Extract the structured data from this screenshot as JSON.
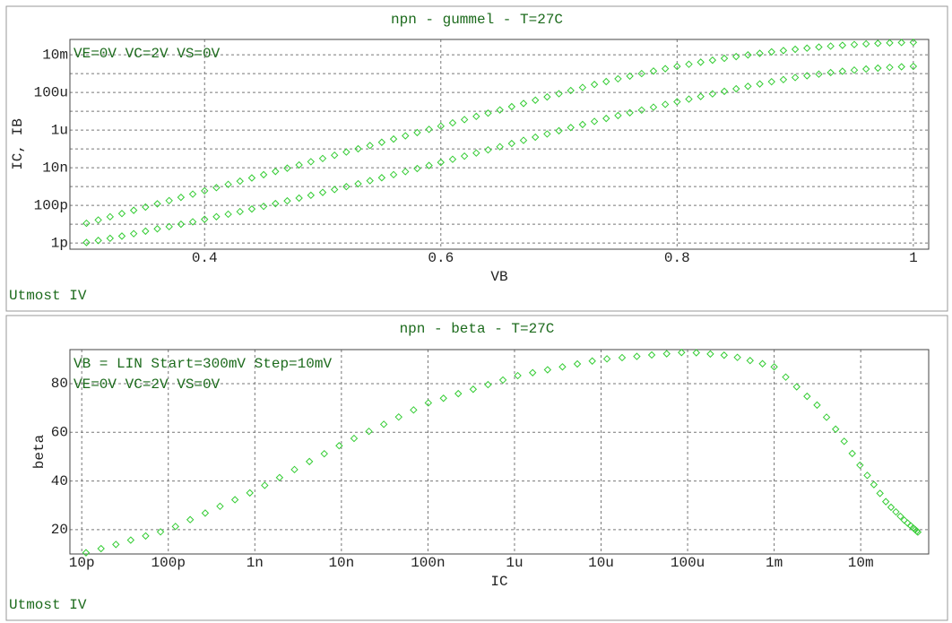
{
  "chart_data": [
    {
      "type": "scatter",
      "title": "npn - gummel - T=27C",
      "xlabel": "VB",
      "ylabel": "IC, IB",
      "footer": "Utmost IV",
      "annotations": [
        "VE=0V VC=2V VS=0V"
      ],
      "x": [
        0.3,
        0.31,
        0.32,
        0.33,
        0.34,
        0.35,
        0.36,
        0.37,
        0.38,
        0.39,
        0.4,
        0.41,
        0.42,
        0.43,
        0.44,
        0.45,
        0.46,
        0.47,
        0.48,
        0.49,
        0.5,
        0.51,
        0.52,
        0.53,
        0.54,
        0.55,
        0.56,
        0.57,
        0.58,
        0.59,
        0.6,
        0.61,
        0.62,
        0.63,
        0.64,
        0.65,
        0.66,
        0.67,
        0.68,
        0.69,
        0.7,
        0.71,
        0.72,
        0.73,
        0.74,
        0.75,
        0.76,
        0.77,
        0.78,
        0.79,
        0.8,
        0.81,
        0.82,
        0.83,
        0.84,
        0.85,
        0.86,
        0.87,
        0.88,
        0.89,
        0.9,
        0.91,
        0.92,
        0.93,
        0.94,
        0.95,
        0.96,
        0.97,
        0.98,
        0.99,
        1
      ],
      "series": [
        {
          "color": "#33cc33",
          "values": [
            1.12e-11,
            1.67e-11,
            2.48e-11,
            3.68e-11,
            5.47e-11,
            8.13e-11,
            1.21e-10,
            1.79e-10,
            2.67e-10,
            3.96e-10,
            5.89e-10,
            8.75e-10,
            1.3e-09,
            1.93e-09,
            2.87e-09,
            4.27e-09,
            6.34e-09,
            9.42e-09,
            1.4e-08,
            2.08e-08,
            3.09e-08,
            4.59e-08,
            6.82e-08,
            1.01e-07,
            1.51e-07,
            2.24e-07,
            3.33e-07,
            4.94e-07,
            7.35e-07,
            1.09e-06,
            1.62e-06,
            2.41e-06,
            3.58e-06,
            5.32e-06,
            7.91e-06,
            1.17e-05,
            1.75e-05,
            2.59e-05,
            3.85e-05,
            5.73e-05,
            8.51e-05,
            0.000126,
            0.000183,
            0.000264,
            0.000376,
            0.000527,
            0.000733,
            0.001,
            0.00136,
            0.00182,
            0.0024,
            0.00313,
            0.00403,
            0.00513,
            0.00644,
            0.00798,
            0.0098,
            0.0119,
            0.0142,
            0.0167,
            0.0195,
            0.0224,
            0.0255,
            0.0287,
            0.0318,
            0.0348,
            0.0378,
            0.0404,
            0.0426,
            0.0444,
            0.0457
          ]
        },
        {
          "color": "#33cc33",
          "values": [
            1.07e-12,
            1.37e-12,
            1.78e-12,
            2.34e-12,
            3.14e-12,
            4.26e-12,
            5.68e-12,
            7.43e-12,
            9.96e-12,
            1.34e-11,
            1.82e-11,
            2.49e-11,
            3.4e-11,
            4.66e-11,
            6.42e-11,
            8.9e-11,
            1.24e-10,
            1.73e-10,
            2.43e-10,
            3.44e-10,
            4.88e-10,
            6.92e-10,
            9.86e-10,
            1.4e-09,
            2.04e-09,
            2.95e-09,
            4.29e-09,
            6.21e-09,
            9.02e-09,
            1.31e-08,
            1.92e-08,
            2.81e-08,
            4.12e-08,
            6.04e-08,
            8.86e-08,
            1.3e-07,
            1.93e-07,
            2.84e-07,
            4.19e-07,
            6.21e-07,
            9.17e-07,
            1.36e-06,
            1.98e-06,
            2.88e-06,
            4.14e-06,
            5.89e-06,
            8.31e-06,
            1.15e-05,
            1.64e-05,
            2.31e-05,
            3.21e-05,
            4.4e-05,
            6.09e-05,
            8.37e-05,
            0.000114,
            0.000156,
            0.000211,
            0.000281,
            0.000369,
            0.000479,
            0.000619,
            0.000767,
            0.000934,
            0.00113,
            0.00133,
            0.00153,
            0.00175,
            0.00195,
            0.00213,
            0.00229,
            0.00241
          ]
        }
      ],
      "xlim": [
        0.286,
        1.013
      ],
      "xticks": [
        0.4,
        0.6,
        0.8,
        1
      ],
      "ylog": true,
      "ylim": [
        4.7e-13,
        0.065
      ],
      "yticks": [
        {
          "value": 1e-12,
          "label": "1p"
        },
        {
          "value": 1e-10,
          "label": "100p"
        },
        {
          "value": 1e-08,
          "label": "10n"
        },
        {
          "value": 1e-06,
          "label": "1u"
        },
        {
          "value": 0.0001,
          "label": "100u"
        },
        {
          "value": 0.01,
          "label": "10m"
        }
      ],
      "yminor": [
        1e-11,
        1e-09,
        1e-07,
        1e-05,
        0.001
      ],
      "grid": true
    },
    {
      "type": "scatter",
      "title": "npn - beta - T=27C",
      "xlabel": "IC",
      "ylabel": "beta",
      "footer": "Utmost IV",
      "annotations": [
        "VB = LIN Start=300mV Step=10mV",
        "VE=0V VC=2V VS=0V"
      ],
      "xlog": true,
      "x": [
        1.12e-11,
        1.67e-11,
        2.48e-11,
        3.68e-11,
        5.47e-11,
        8.13e-11,
        1.21e-10,
        1.79e-10,
        2.67e-10,
        3.96e-10,
        5.89e-10,
        8.75e-10,
        1.3e-09,
        1.93e-09,
        2.87e-09,
        4.27e-09,
        6.34e-09,
        9.42e-09,
        1.4e-08,
        2.08e-08,
        3.09e-08,
        4.59e-08,
        6.82e-08,
        1.01e-07,
        1.51e-07,
        2.24e-07,
        3.33e-07,
        4.94e-07,
        7.35e-07,
        1.09e-06,
        1.62e-06,
        2.41e-06,
        3.58e-06,
        5.32e-06,
        7.91e-06,
        1.17e-05,
        1.75e-05,
        2.59e-05,
        3.85e-05,
        5.73e-05,
        8.51e-05,
        0.000126,
        0.000183,
        0.000264,
        0.000376,
        0.000527,
        0.000733,
        0.001,
        0.00136,
        0.00182,
        0.0024,
        0.00313,
        0.00403,
        0.00513,
        0.00644,
        0.00798,
        0.0098,
        0.0119,
        0.0142,
        0.0167,
        0.0195,
        0.0224,
        0.0255,
        0.0287,
        0.0318,
        0.0348,
        0.0378,
        0.0404,
        0.0426,
        0.0444,
        0.0457
      ],
      "series": [
        {
          "color": "#33cc33",
          "values": [
            10.5,
            12.2,
            13.9,
            15.7,
            17.4,
            19.1,
            21.3,
            24.1,
            26.8,
            29.6,
            32.3,
            35.1,
            38.2,
            41.4,
            44.7,
            48,
            51.2,
            54.5,
            57.5,
            60.4,
            63.3,
            66.3,
            69.2,
            72.1,
            74,
            75.9,
            77.7,
            79.6,
            81.5,
            83.3,
            84.5,
            85.7,
            86.9,
            88.1,
            89.3,
            90.2,
            90.7,
            91.2,
            91.8,
            92.3,
            92.8,
            92.7,
            92.2,
            91.7,
            90.8,
            89.5,
            88.2,
            86.9,
            82.7,
            78.7,
            74.8,
            71.2,
            66.2,
            61.3,
            56.3,
            51.3,
            46.5,
            42.3,
            38.5,
            34.9,
            31.5,
            29.2,
            27.3,
            25.5,
            23.9,
            22.7,
            21.6,
            20.7,
            20,
            19.4,
            19
          ]
        }
      ],
      "xlim": [
        7.3e-12,
        0.061
      ],
      "xticks": [
        {
          "value": 1e-11,
          "label": "10p"
        },
        {
          "value": 1e-10,
          "label": "100p"
        },
        {
          "value": 1e-09,
          "label": "1n"
        },
        {
          "value": 1e-08,
          "label": "10n"
        },
        {
          "value": 1e-07,
          "label": "100n"
        },
        {
          "value": 1e-06,
          "label": "1u"
        },
        {
          "value": 1e-05,
          "label": "10u"
        },
        {
          "value": 0.0001,
          "label": "100u"
        },
        {
          "value": 0.001,
          "label": "1m"
        },
        {
          "value": 0.01,
          "label": "10m"
        }
      ],
      "ylim": [
        10,
        94
      ],
      "yticks": [
        20,
        40,
        60,
        80
      ],
      "grid": true
    }
  ]
}
